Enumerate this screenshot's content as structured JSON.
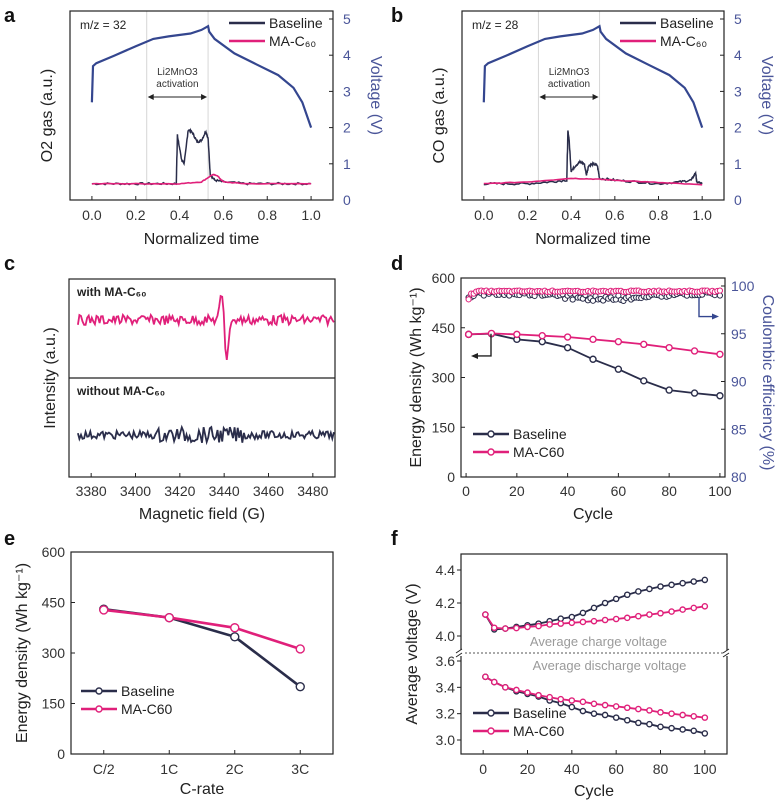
{
  "colors": {
    "baseline": "#2a2d4a",
    "mac60": "#e0207a",
    "voltage": "#34468f",
    "right_axis": "#4a5599",
    "grey_text": "#9a9a9a"
  },
  "chart_data": [
    {
      "id": "a",
      "panel_label": "a",
      "type": "line",
      "annotation": "m/z = 32",
      "region_label_line1": "Li2MnO3",
      "region_label_line2": "activation",
      "region": [
        0.25,
        0.53
      ],
      "xlabel": "Normalized time",
      "ylabel": "O2 gas (a.u.)",
      "ylabel_right": "Voltage (V)",
      "xlim": [
        -0.1,
        1.1
      ],
      "xticks": [
        "0.0",
        "0.2",
        "0.4",
        "0.6",
        "0.8",
        "1.0"
      ],
      "ylim_right": [
        0,
        5
      ],
      "yticks_right": [
        "0",
        "1",
        "2",
        "3",
        "4",
        "5"
      ],
      "legend": [
        "Baseline",
        "MA-C60"
      ],
      "legend_position": "top-right",
      "voltage": {
        "x": [
          0,
          0.005,
          0.02,
          0.1,
          0.2,
          0.28,
          0.35,
          0.45,
          0.5,
          0.53,
          0.535,
          0.56,
          0.65,
          0.75,
          0.85,
          0.92,
          0.96,
          1.0
        ],
        "y": [
          2.7,
          3.7,
          3.78,
          3.98,
          4.25,
          4.45,
          4.52,
          4.6,
          4.7,
          4.8,
          4.65,
          4.45,
          4.05,
          3.75,
          3.45,
          3.1,
          2.7,
          2.0
        ]
      },
      "series": [
        {
          "name": "Baseline",
          "x": [
            0,
            0.1,
            0.2,
            0.3,
            0.385,
            0.39,
            0.395,
            0.41,
            0.42,
            0.44,
            0.46,
            0.48,
            0.5,
            0.52,
            0.53,
            0.54,
            0.56,
            0.6,
            0.7,
            0.8,
            0.9,
            1.0
          ],
          "y": [
            0.45,
            0.45,
            0.45,
            0.45,
            0.45,
            1.8,
            1.6,
            1.1,
            1.0,
            1.95,
            1.85,
            1.6,
            1.65,
            1.9,
            1.7,
            0.7,
            0.55,
            0.5,
            0.45,
            0.45,
            0.45,
            0.45
          ]
        },
        {
          "name": "MA-C60",
          "x": [
            0,
            0.2,
            0.4,
            0.5,
            0.55,
            0.57,
            0.6,
            0.7,
            1.0
          ],
          "y": [
            0.45,
            0.45,
            0.45,
            0.5,
            0.7,
            0.68,
            0.5,
            0.45,
            0.45
          ]
        }
      ]
    },
    {
      "id": "b",
      "panel_label": "b",
      "type": "line",
      "annotation": "m/z = 28",
      "region_label_line1": "Li2MnO3",
      "region_label_line2": "activation",
      "region": [
        0.25,
        0.53
      ],
      "xlabel": "Normalized time",
      "ylabel": "CO gas (a.u.)",
      "ylabel_right": "Voltage (V)",
      "xlim": [
        -0.1,
        1.1
      ],
      "xticks": [
        "0.0",
        "0.2",
        "0.4",
        "0.6",
        "0.8",
        "1.0"
      ],
      "ylim_right": [
        0,
        5
      ],
      "yticks_right": [
        "0",
        "1",
        "2",
        "3",
        "4",
        "5"
      ],
      "legend": [
        "Baseline",
        "MA-C60"
      ],
      "legend_position": "top-right",
      "voltage": {
        "x": [
          0,
          0.005,
          0.02,
          0.1,
          0.2,
          0.28,
          0.35,
          0.45,
          0.5,
          0.53,
          0.535,
          0.56,
          0.65,
          0.75,
          0.85,
          0.92,
          0.96,
          1.0
        ],
        "y": [
          2.7,
          3.7,
          3.78,
          3.98,
          4.25,
          4.45,
          4.52,
          4.6,
          4.7,
          4.8,
          4.65,
          4.45,
          4.05,
          3.75,
          3.45,
          3.1,
          2.7,
          2.0
        ]
      },
      "series": [
        {
          "name": "Baseline",
          "x": [
            0,
            0.1,
            0.2,
            0.3,
            0.38,
            0.385,
            0.39,
            0.4,
            0.42,
            0.44,
            0.46,
            0.47,
            0.48,
            0.5,
            0.52,
            0.53,
            0.6,
            0.7,
            0.8,
            0.9,
            0.95,
            0.97,
            0.975,
            1.0
          ],
          "y": [
            0.45,
            0.45,
            0.45,
            0.5,
            0.55,
            1.9,
            1.7,
            0.8,
            0.95,
            1.05,
            1.0,
            0.7,
            0.95,
            1.0,
            0.95,
            0.6,
            0.55,
            0.5,
            0.45,
            0.5,
            0.55,
            0.75,
            0.5,
            0.45
          ]
        },
        {
          "name": "MA-C60",
          "x": [
            0,
            0.2,
            0.4,
            0.5,
            0.6,
            0.8,
            1.0
          ],
          "y": [
            0.45,
            0.5,
            0.6,
            0.58,
            0.55,
            0.48,
            0.42
          ]
        }
      ]
    },
    {
      "id": "c",
      "panel_label": "c",
      "type": "line",
      "xlabel": "Magnetic field (G)",
      "ylabel": "Intensity (a.u.)",
      "xlim": [
        3370,
        3490
      ],
      "xticks": [
        "3380",
        "3400",
        "3420",
        "3440",
        "3460",
        "3480"
      ],
      "subplots": [
        {
          "label": "with MA-C60",
          "series": "MA-C60",
          "feature": "sharp derivative signal near 3440 G"
        },
        {
          "label": "without MA-C60",
          "series": "Baseline",
          "feature": "noise only"
        }
      ],
      "signal_center": 3440
    },
    {
      "id": "d",
      "panel_label": "d",
      "type": "line",
      "xlabel": "Cycle",
      "ylabel": "Energy density (Wh kg-1)",
      "ylabel_right": "Coulombic efficiency (%)",
      "xlim": [
        -2,
        102
      ],
      "xticks": [
        "0",
        "20",
        "40",
        "60",
        "80",
        "100"
      ],
      "ylim": [
        0,
        600
      ],
      "yticks": [
        "0",
        "150",
        "300",
        "450",
        "600"
      ],
      "ylim_right": [
        80,
        101
      ],
      "yticks_right": [
        "80",
        "85",
        "90",
        "95",
        "100"
      ],
      "legend": [
        "Baseline",
        "MA-C60"
      ],
      "legend_position": "bottom-left",
      "energy": {
        "x": [
          1,
          10,
          20,
          30,
          40,
          50,
          60,
          70,
          80,
          90,
          100
        ],
        "series": [
          {
            "name": "Baseline",
            "values": [
              430,
              432,
              415,
              408,
              390,
              355,
              325,
              290,
              262,
              253,
              245
            ]
          },
          {
            "name": "MA-C60",
            "values": [
              430,
              433,
              430,
              426,
              422,
              415,
              408,
              400,
              390,
              380,
              370
            ]
          }
        ]
      },
      "coulombic": {
        "series": [
          {
            "name": "Baseline",
            "range": [
              98.5,
              99.6
            ]
          },
          {
            "name": "MA-C60",
            "range": [
              98.8,
              99.6
            ]
          }
        ]
      }
    },
    {
      "id": "e",
      "panel_label": "e",
      "type": "line",
      "xlabel": "C-rate",
      "ylabel": "Energy density (Wh kg-1)",
      "categories": [
        "C/2",
        "1C",
        "2C",
        "3C"
      ],
      "ylim": [
        0,
        600
      ],
      "yticks": [
        "0",
        "150",
        "300",
        "450",
        "600"
      ],
      "legend": [
        "Baseline",
        "MA-C60"
      ],
      "legend_position": "bottom-left",
      "series": [
        {
          "name": "Baseline",
          "values": [
            430,
            405,
            348,
            200
          ]
        },
        {
          "name": "MA-C60",
          "values": [
            428,
            405,
            375,
            312
          ]
        }
      ]
    },
    {
      "id": "f",
      "panel_label": "f",
      "type": "line",
      "xlabel": "Cycle",
      "ylabel": "Average voltage (V)",
      "xlim": [
        -10,
        110
      ],
      "xticks": [
        "0",
        "20",
        "40",
        "60",
        "80",
        "100"
      ],
      "yticks_upper": [
        "4.0",
        "4.2",
        "4.4"
      ],
      "yticks_lower": [
        "3.0",
        "3.2",
        "3.4",
        "3.6"
      ],
      "annotation_charge": "Average charge voltage",
      "annotation_discharge": "Average discharge voltage",
      "legend": [
        "Baseline",
        "MA-C60"
      ],
      "legend_position": "bottom-left",
      "x": [
        1,
        5,
        10,
        15,
        20,
        25,
        30,
        35,
        40,
        45,
        50,
        55,
        60,
        65,
        70,
        75,
        80,
        85,
        90,
        95,
        100
      ],
      "charge": [
        {
          "name": "Baseline",
          "values": [
            4.13,
            4.04,
            4.045,
            4.055,
            4.065,
            4.075,
            4.09,
            4.105,
            4.115,
            4.14,
            4.17,
            4.2,
            4.225,
            4.25,
            4.27,
            4.285,
            4.3,
            4.31,
            4.32,
            4.33,
            4.34
          ]
        },
        {
          "name": "MA-C60",
          "values": [
            4.13,
            4.05,
            4.045,
            4.048,
            4.055,
            4.06,
            4.07,
            4.075,
            4.08,
            4.085,
            4.09,
            4.097,
            4.103,
            4.11,
            4.12,
            4.13,
            4.138,
            4.148,
            4.16,
            4.17,
            4.18
          ]
        }
      ],
      "discharge": [
        {
          "name": "Baseline",
          "values": [
            3.48,
            3.44,
            3.4,
            3.37,
            3.35,
            3.33,
            3.3,
            3.28,
            3.25,
            3.22,
            3.2,
            3.19,
            3.17,
            3.15,
            3.13,
            3.12,
            3.1,
            3.09,
            3.08,
            3.07,
            3.05
          ]
        },
        {
          "name": "MA-C60",
          "values": [
            3.48,
            3.44,
            3.4,
            3.38,
            3.36,
            3.34,
            3.325,
            3.31,
            3.3,
            3.29,
            3.275,
            3.265,
            3.255,
            3.245,
            3.235,
            3.225,
            3.21,
            3.2,
            3.19,
            3.18,
            3.17
          ]
        }
      ]
    }
  ]
}
